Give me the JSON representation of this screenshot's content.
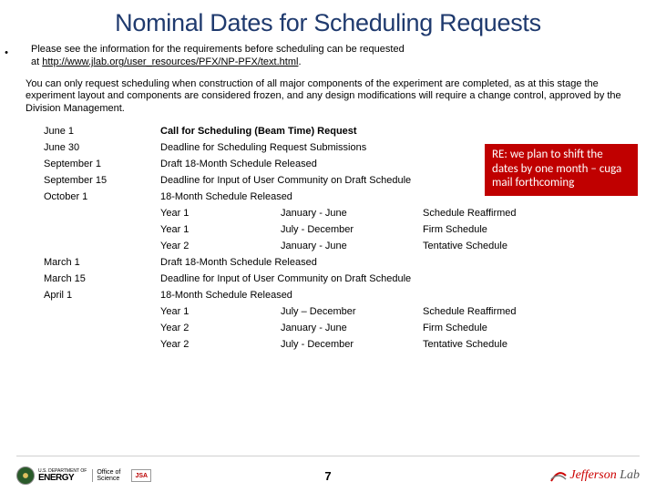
{
  "title": "Nominal Dates for Scheduling Requests",
  "intro_line1": "Please see the information for the requirements before scheduling can be requested",
  "intro_line2_prefix": "at ",
  "intro_url": "http://www.jlab.org/user_resources/PFX/NP-PFX/text.html",
  "intro_line2_suffix": ".",
  "para2": "You can only request scheduling when construction of all major components of the experiment are completed, as at this stage the experiment layout and components are considered frozen, and any design modifications will require a change control, approved by the Division Management.",
  "rows1": [
    {
      "date": "June 1",
      "desc": "Call for Scheduling (Beam Time) Request",
      "bold": true
    },
    {
      "date": "June 30",
      "desc": "Deadline for Scheduling Request Submissions"
    },
    {
      "date": "September 1",
      "desc": "Draft 18-Month Schedule Released"
    },
    {
      "date": "September 15",
      "desc": "Deadline for Input of User Community on Draft Schedule"
    },
    {
      "date": "October 1",
      "desc": "18-Month Schedule Released"
    }
  ],
  "sub1": [
    {
      "year": "Year 1",
      "period": "January - June",
      "status": "Schedule Reaffirmed"
    },
    {
      "year": "Year 1",
      "period": "July - December",
      "status": "Firm Schedule"
    },
    {
      "year": "Year 2",
      "period": "January - June",
      "status": "Tentative Schedule"
    }
  ],
  "rows2": [
    {
      "date": "March 1",
      "desc": "Draft 18-Month Schedule Released"
    },
    {
      "date": "March 15",
      "desc": "Deadline for Input of User Community on Draft Schedule"
    },
    {
      "date": "April 1",
      "desc": "18-Month Schedule Released"
    }
  ],
  "sub2": [
    {
      "year": "Year 1",
      "period": "July – December",
      "status": "Schedule Reaffirmed"
    },
    {
      "year": "Year 2",
      "period": "January - June",
      "status": "Firm Schedule"
    },
    {
      "year": "Year 2",
      "period": "July - December",
      "status": "Tentative Schedule"
    }
  ],
  "callout": "RE: we plan to shift the dates by one month – cuga mail forthcoming",
  "footer": {
    "doe_top": "U.S. DEPARTMENT OF",
    "doe_main": "ENERGY",
    "office1": "Office of",
    "office2": "Science",
    "jsa": "JSA",
    "page": "7",
    "jlab1": "Jefferson",
    "jlab2": "Lab"
  },
  "colors": {
    "title": "#1f3a6e",
    "callout_bg": "#c00000",
    "callout_text": "#ffffff",
    "jlab_red": "#cc0000"
  }
}
